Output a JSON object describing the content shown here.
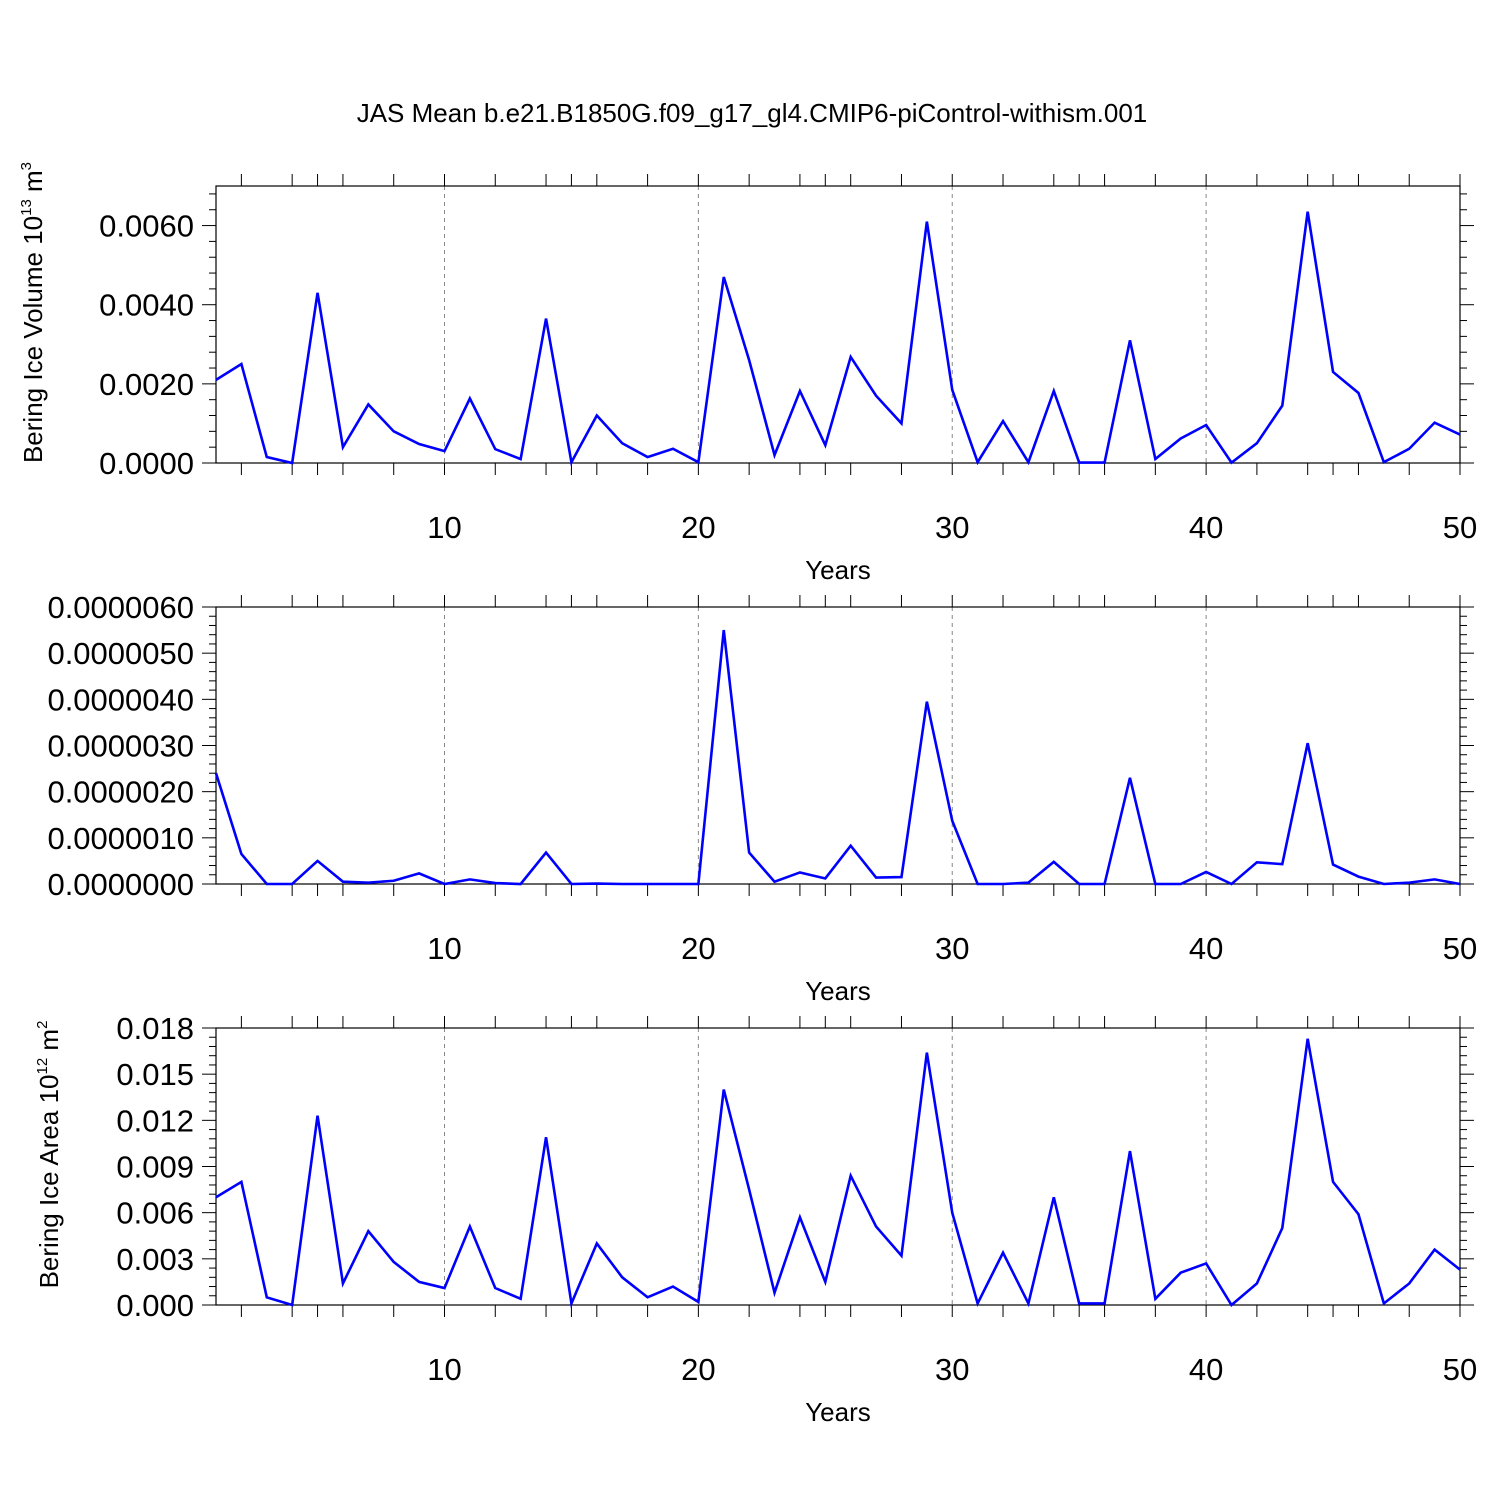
{
  "title": "JAS Mean b.e21.B1850G.f09_g17_gl4.CMIP6-piControl-withism.001",
  "line_color": "#0000ff",
  "chart_data": [
    {
      "type": "line",
      "ylabel_parts": [
        "Bering Ice Volume 10",
        "13",
        " m",
        "3"
      ],
      "xlabel": "Years",
      "xlim": [
        1,
        50
      ],
      "ylim": [
        0,
        0.007
      ],
      "x_ticks": [
        10,
        20,
        30,
        40,
        50
      ],
      "y_ticks": [
        0,
        0.002,
        0.004,
        0.006
      ],
      "y_tick_labels": [
        "0.0000",
        "0.0020",
        "0.0040",
        "0.0060"
      ],
      "grid": "dashed vertical at labeled x ticks",
      "series": [
        {
          "x": [
            1,
            2,
            3,
            4,
            5,
            6,
            7,
            8,
            9,
            10,
            11,
            12,
            13,
            14,
            15,
            16,
            17,
            18,
            19,
            20,
            21,
            22,
            23,
            24,
            25,
            26,
            27,
            28,
            29,
            30,
            31,
            32,
            33,
            34,
            35,
            36,
            37,
            38,
            39,
            40,
            41,
            42,
            43,
            44,
            45,
            46,
            47,
            48,
            49,
            50
          ],
          "values": [
            0.0021,
            0.0025,
            0.00015,
            0.0,
            0.0043,
            0.0004,
            0.00148,
            0.0008,
            0.00048,
            0.0003,
            0.00163,
            0.00035,
            0.0001,
            0.00365,
            2e-05,
            0.0012,
            0.0005,
            0.00015,
            0.00036,
            2e-05,
            0.0047,
            0.0026,
            0.0002,
            0.00182,
            0.00045,
            0.00268,
            0.0017,
            0.001,
            0.0061,
            0.00185,
            2e-05,
            0.00106,
            2e-05,
            0.00182,
            1e-05,
            1e-05,
            0.0031,
            0.0001,
            0.00062,
            0.00096,
            1e-05,
            0.0005,
            0.00145,
            0.00635,
            0.0023,
            0.00177,
            2e-05,
            0.00036,
            0.00102,
            0.00072
          ]
        }
      ]
    },
    {
      "type": "line",
      "ylabel_parts": [],
      "xlabel": "Years",
      "xlim": [
        1,
        50
      ],
      "ylim": [
        0,
        6e-06
      ],
      "x_ticks": [
        10,
        20,
        30,
        40,
        50
      ],
      "y_ticks": [
        0,
        1e-06,
        2e-06,
        3e-06,
        4e-06,
        5e-06,
        6e-06
      ],
      "y_tick_labels": [
        "0.0000000",
        "0.0000010",
        "0.0000020",
        "0.0000030",
        "0.0000040",
        "0.0000050",
        "0.0000060"
      ],
      "grid": "dashed vertical at labeled x ticks",
      "series": [
        {
          "x": [
            1,
            2,
            3,
            4,
            5,
            6,
            7,
            8,
            9,
            10,
            11,
            12,
            13,
            14,
            15,
            16,
            17,
            18,
            19,
            20,
            21,
            22,
            23,
            24,
            25,
            26,
            27,
            28,
            29,
            30,
            31,
            32,
            33,
            34,
            35,
            36,
            37,
            38,
            39,
            40,
            41,
            42,
            43,
            44,
            45,
            46,
            47,
            48,
            49,
            50
          ],
          "values": [
            2.4e-06,
            6.5e-07,
            0.0,
            0.0,
            5e-07,
            5e-08,
            3e-08,
            7e-08,
            2.3e-07,
            0.0,
            1e-07,
            2e-08,
            0.0,
            6.8e-07,
            0.0,
            1e-08,
            0.0,
            0.0,
            0.0,
            0.0,
            5.5e-06,
            6.8e-07,
            5e-08,
            2.5e-07,
            1.2e-07,
            8.3e-07,
            1.4e-07,
            1.5e-07,
            3.95e-06,
            1.37e-06,
            0.0,
            0.0,
            3e-08,
            4.8e-07,
            0.0,
            0.0,
            2.3e-06,
            0.0,
            0.0,
            2.6e-07,
            0.0,
            4.7e-07,
            4.3e-07,
            3.05e-06,
            4.2e-07,
            1.6e-07,
            0.0,
            3e-08,
            1e-07,
            0.0
          ]
        }
      ]
    },
    {
      "type": "line",
      "ylabel_parts": [
        "Bering Ice Area 10",
        "12",
        " m",
        "2"
      ],
      "xlabel": "Years",
      "xlim": [
        1,
        50
      ],
      "ylim": [
        0,
        0.018
      ],
      "x_ticks": [
        10,
        20,
        30,
        40,
        50
      ],
      "y_ticks": [
        0,
        0.003,
        0.006,
        0.009,
        0.012,
        0.015,
        0.018
      ],
      "y_tick_labels": [
        "0.000",
        "0.003",
        "0.006",
        "0.009",
        "0.012",
        "0.015",
        "0.018"
      ],
      "grid": "dashed vertical at labeled x ticks",
      "series": [
        {
          "x": [
            1,
            2,
            3,
            4,
            5,
            6,
            7,
            8,
            9,
            10,
            11,
            12,
            13,
            14,
            15,
            16,
            17,
            18,
            19,
            20,
            21,
            22,
            23,
            24,
            25,
            26,
            27,
            28,
            29,
            30,
            31,
            32,
            33,
            34,
            35,
            36,
            37,
            38,
            39,
            40,
            41,
            42,
            43,
            44,
            45,
            46,
            47,
            48,
            49,
            50
          ],
          "values": [
            0.007,
            0.008,
            0.0005,
            0.0,
            0.0123,
            0.0014,
            0.0048,
            0.0028,
            0.0015,
            0.0011,
            0.0051,
            0.0011,
            0.0004,
            0.0109,
            0.0001,
            0.004,
            0.0018,
            0.0005,
            0.0012,
            0.0002,
            0.014,
            0.0075,
            0.0008,
            0.0057,
            0.0015,
            0.0084,
            0.0051,
            0.0032,
            0.0164,
            0.006,
            0.0001,
            0.0034,
            0.0001,
            0.007,
            0.0001,
            0.0001,
            0.01,
            0.0004,
            0.0021,
            0.0027,
            0.0,
            0.0014,
            0.005,
            0.0173,
            0.008,
            0.0059,
            0.0001,
            0.0014,
            0.0036,
            0.0023
          ]
        }
      ]
    }
  ]
}
